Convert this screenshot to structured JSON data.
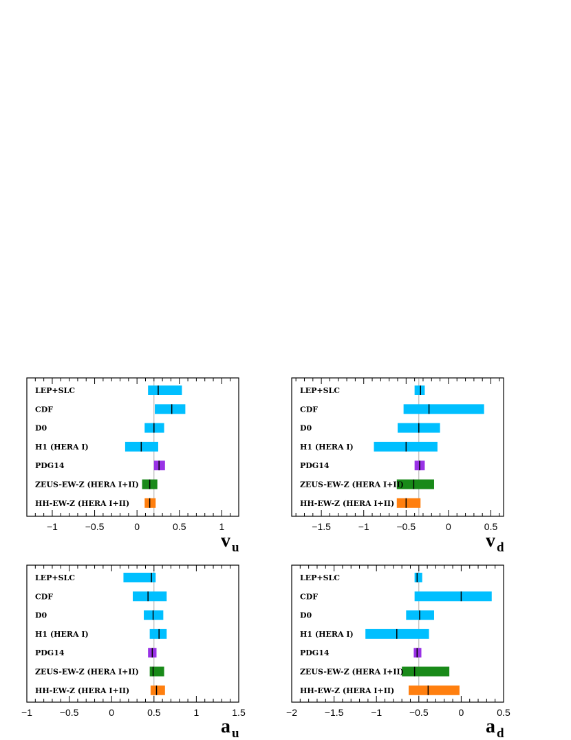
{
  "colors": {
    "measurement": "#00bfff",
    "pdg": "#9932e6",
    "zeus": "#198a19",
    "hh": "#ff7f0f",
    "center_line": "#aaaaaa"
  },
  "chart_data": [
    {
      "type": "interval",
      "id": "vu",
      "xlabel": "v",
      "xlabel_sub": "u",
      "xlim": [
        -1.3,
        1.2
      ],
      "xticks": [
        -1,
        -0.5,
        0,
        0.5,
        1
      ],
      "xtick_labels": [
        "−1",
        "−0.5",
        "0",
        "0.5",
        "1"
      ],
      "reference": 0.2,
      "categories": [
        "LEP+SLC",
        "CDF",
        "D0",
        "H1 (HERA I)",
        "PDG14",
        "ZEUS-EW-Z (HERA I+II)",
        "HH-EW-Z (HERA I+II)"
      ],
      "color_keys": [
        "measurement",
        "measurement",
        "measurement",
        "measurement",
        "pdg",
        "zeus",
        "hh"
      ],
      "central": [
        0.25,
        0.41,
        0.2,
        0.05,
        0.26,
        0.15,
        0.15
      ],
      "low": [
        0.13,
        0.21,
        0.09,
        -0.14,
        0.2,
        0.06,
        0.09
      ],
      "high": [
        0.53,
        0.57,
        0.32,
        0.25,
        0.33,
        0.24,
        0.22
      ]
    },
    {
      "type": "interval",
      "id": "vd",
      "xlabel": "v",
      "xlabel_sub": "d",
      "xlim": [
        -1.85,
        0.65
      ],
      "xticks": [
        -1.5,
        -1,
        -0.5,
        0,
        0.5
      ],
      "xtick_labels": [
        "−1.5",
        "−1",
        "−0.5",
        "0",
        "0.5"
      ],
      "reference": -0.35,
      "categories": [
        "LEP+SLC",
        "CDF",
        "D0",
        "H1 (HERA I)",
        "PDG14",
        "ZEUS-EW-Z (HERA I+II)",
        "HH-EW-Z (HERA I+II)"
      ],
      "color_keys": [
        "measurement",
        "measurement",
        "measurement",
        "measurement",
        "pdg",
        "zeus",
        "hh"
      ],
      "central": [
        -0.33,
        -0.23,
        -0.35,
        -0.5,
        -0.34,
        -0.41,
        -0.5
      ],
      "low": [
        -0.4,
        -0.53,
        -0.6,
        -0.88,
        -0.4,
        -0.61,
        -0.61
      ],
      "high": [
        -0.28,
        0.42,
        -0.1,
        -0.13,
        -0.28,
        -0.17,
        -0.33
      ]
    },
    {
      "type": "interval",
      "id": "au",
      "xlabel": "a",
      "xlabel_sub": "u",
      "xlim": [
        -1,
        1.5
      ],
      "xticks": [
        -1,
        -0.5,
        0,
        0.5,
        1,
        1.5
      ],
      "xtick_labels": [
        "−1",
        "−0.5",
        "0",
        "0.5",
        "1",
        "1.5"
      ],
      "reference": 0.5,
      "categories": [
        "LEP+SLC",
        "CDF",
        "D0",
        "H1 (HERA I)",
        "PDG14",
        "ZEUS-EW-Z (HERA I+II)",
        "HH-EW-Z (HERA I+II)"
      ],
      "color_keys": [
        "measurement",
        "measurement",
        "measurement",
        "measurement",
        "pdg",
        "zeus",
        "hh"
      ],
      "central": [
        0.47,
        0.43,
        0.49,
        0.56,
        0.48,
        0.49,
        0.53
      ],
      "low": [
        0.14,
        0.25,
        0.38,
        0.45,
        0.43,
        0.45,
        0.46
      ],
      "high": [
        0.52,
        0.65,
        0.61,
        0.65,
        0.53,
        0.62,
        0.63
      ]
    },
    {
      "type": "interval",
      "id": "ad",
      "xlabel": "a",
      "xlabel_sub": "d",
      "xlim": [
        -2,
        0.5
      ],
      "xticks": [
        -2,
        -1.5,
        -1,
        -0.5,
        0,
        0.5
      ],
      "xtick_labels": [
        "−2",
        "−1.5",
        "−1",
        "−0.5",
        "0",
        "0.5"
      ],
      "reference": -0.5,
      "categories": [
        "LEP+SLC",
        "CDF",
        "D0",
        "H1 (HERA I)",
        "PDG14",
        "ZEUS-EW-Z (HERA I+II)",
        "HH-EW-Z (HERA I+II)"
      ],
      "color_keys": [
        "measurement",
        "measurement",
        "measurement",
        "measurement",
        "pdg",
        "zeus",
        "hh"
      ],
      "central": [
        -0.52,
        0,
        -0.49,
        -0.76,
        -0.52,
        -0.55,
        -0.39
      ],
      "low": [
        -0.55,
        -0.55,
        -0.65,
        -1.13,
        -0.56,
        -0.7,
        -0.62
      ],
      "high": [
        -0.46,
        0.36,
        -0.32,
        -0.38,
        -0.47,
        -0.14,
        -0.02
      ]
    }
  ]
}
